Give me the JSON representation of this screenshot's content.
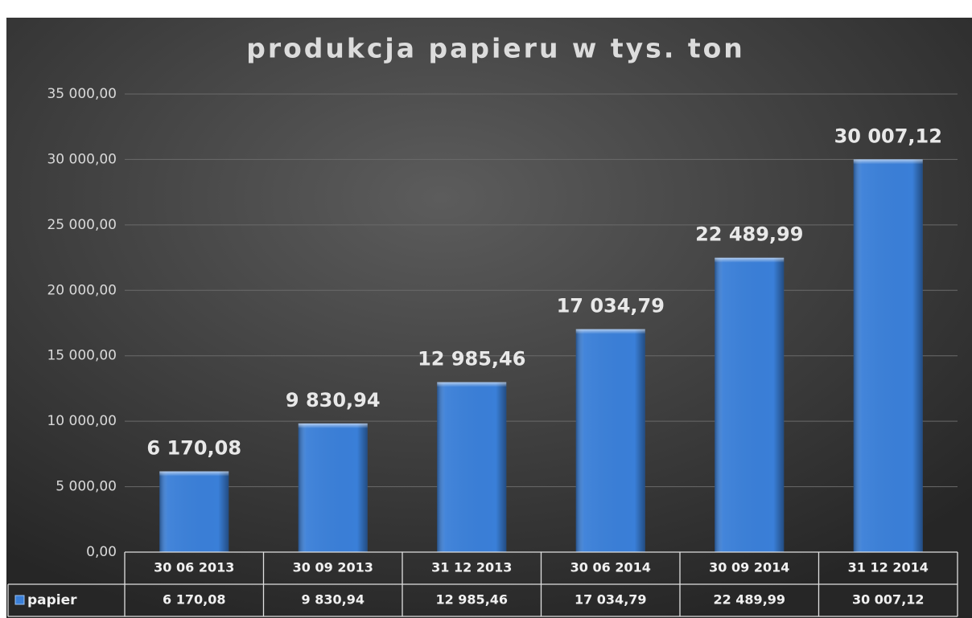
{
  "chart_data": {
    "type": "bar",
    "title": "produkcja papieru w tys. ton",
    "categories": [
      "30 06 2013",
      "30 09 2013",
      "31 12 2013",
      "30 06 2014",
      "30 09 2014",
      "31 12 2014"
    ],
    "series": [
      {
        "name": "papier",
        "color": "#3a7fd8",
        "values": [
          6170.08,
          9830.94,
          12985.46,
          17034.79,
          22489.99,
          30007.12
        ],
        "value_labels": [
          "6 170,08",
          "9 830,94",
          "12 985,46",
          "17 034,79",
          "22 489,99",
          "30 007,12"
        ]
      }
    ],
    "ylim": [
      0,
      35000
    ],
    "yticks": [
      {
        "value": 0,
        "label": "0,00"
      },
      {
        "value": 5000,
        "label": "5 000,00"
      },
      {
        "value": 10000,
        "label": "10 000,00"
      },
      {
        "value": 15000,
        "label": "15 000,00"
      },
      {
        "value": 20000,
        "label": "20 000,00"
      },
      {
        "value": 25000,
        "label": "25 000,00"
      },
      {
        "value": 30000,
        "label": "30 000,00"
      },
      {
        "value": 35000,
        "label": "35 000,00"
      }
    ],
    "grid": true,
    "data_table": true
  }
}
